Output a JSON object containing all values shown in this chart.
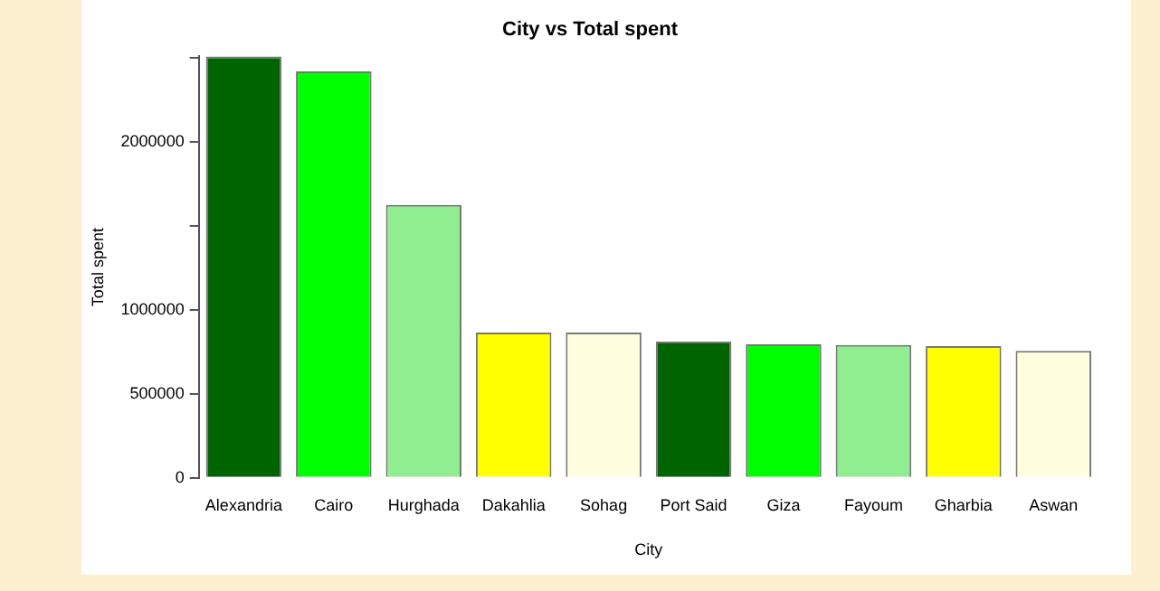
{
  "chart_data": {
    "type": "bar",
    "title": "City vs Total spent",
    "xlabel": "City",
    "ylabel": "Total spent",
    "categories": [
      "Alexandria",
      "Cairo",
      "Hurghada",
      "Dakahlia",
      "Sohag",
      "Port Said",
      "Giza",
      "Fayoum",
      "Gharbia",
      "Aswan"
    ],
    "values": [
      2510000,
      2420000,
      1625000,
      866000,
      865000,
      812000,
      796000,
      792000,
      784000,
      756000
    ],
    "colors": [
      "#006400",
      "#00ff00",
      "#90ee90",
      "#ffff00",
      "#ffffe0",
      "#006400",
      "#00ff00",
      "#90ee90",
      "#ffff00",
      "#ffffe0"
    ],
    "ylim": [
      0,
      2510000
    ],
    "yticks": [
      0,
      500000,
      1000000,
      {
        "value": 1500000,
        "label": null
      },
      2000000,
      {
        "value": 2500000,
        "label": null
      }
    ],
    "grid": false,
    "legend": false
  }
}
